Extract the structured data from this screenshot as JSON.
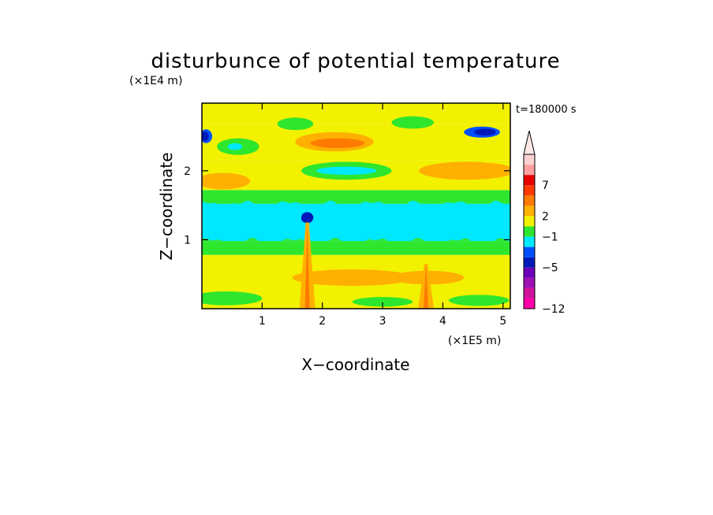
{
  "chart_data": {
    "type": "heatmap",
    "title": "disturbunce of potential temperature",
    "xlabel": "X−coordinate",
    "ylabel": "Z−coordinate",
    "x_unit": "(×1E5 m)",
    "y_unit": "(×1E4 m)",
    "time_label": "t=180000 s",
    "xlim": [
      0,
      5.12
    ],
    "ylim": [
      0,
      2.98
    ],
    "x_ticks": [
      1,
      2,
      3,
      4,
      5
    ],
    "y_ticks": [
      1,
      2
    ],
    "grid": false,
    "colorbar": {
      "placement": "right",
      "levels_from_bottom": [
        "#ff00a8",
        "#d0129a",
        "#9e0fb4",
        "#6a00b8",
        "#0018b8",
        "#0050ff",
        "#00e8ff",
        "#2ee62e",
        "#f2f200",
        "#ffb000",
        "#ff7a00",
        "#ff3a00",
        "#e60000",
        "#ffa0a0",
        "#ffd0d0"
      ],
      "extend_arrow_color": "#ffe8e8",
      "labels": [
        {
          "text": "7",
          "value": 7
        },
        {
          "text": "2",
          "value": 2
        },
        {
          "text": "−1",
          "value": -1
        },
        {
          "text": "−5",
          "value": -5
        },
        {
          "text": "−12",
          "value": -12
        }
      ]
    },
    "field_bands_z": [
      {
        "z_from": 0.0,
        "z_to": 0.78,
        "color": "#f2f200"
      },
      {
        "z_from": 0.78,
        "z_to": 0.98,
        "color": "#2ee62e"
      },
      {
        "z_from": 0.98,
        "z_to": 1.52,
        "color": "#00e8ff"
      },
      {
        "z_from": 1.52,
        "z_to": 1.72,
        "color": "#2ee62e"
      },
      {
        "z_from": 1.72,
        "z_to": 2.15,
        "color": "#f2f200"
      },
      {
        "z_from": 2.15,
        "z_to": 2.68,
        "color": "#f2f200"
      },
      {
        "z_from": 2.68,
        "z_to": 2.98,
        "color": "#f2f200"
      }
    ],
    "features": [
      {
        "kind": "blob",
        "x": 2.2,
        "z": 2.42,
        "rx": 0.65,
        "rz": 0.14,
        "color": "#ffb000"
      },
      {
        "kind": "blob",
        "x": 2.25,
        "z": 2.4,
        "rx": 0.45,
        "rz": 0.07,
        "color": "#ff7a00"
      },
      {
        "kind": "blob",
        "x": 4.65,
        "z": 2.56,
        "rx": 0.3,
        "rz": 0.08,
        "color": "#0050ff"
      },
      {
        "kind": "blob",
        "x": 4.7,
        "z": 2.56,
        "rx": 0.18,
        "rz": 0.05,
        "color": "#0018b8"
      },
      {
        "kind": "blob",
        "x": 0.07,
        "z": 2.5,
        "rx": 0.1,
        "rz": 0.1,
        "color": "#0050ff"
      },
      {
        "kind": "blob",
        "x": 0.05,
        "z": 2.5,
        "rx": 0.06,
        "rz": 0.07,
        "color": "#0018b8"
      },
      {
        "kind": "blob",
        "x": 0.6,
        "z": 2.35,
        "rx": 0.35,
        "rz": 0.12,
        "color": "#2ee62e"
      },
      {
        "kind": "blob",
        "x": 0.55,
        "z": 2.35,
        "rx": 0.12,
        "rz": 0.05,
        "color": "#00e8ff"
      },
      {
        "kind": "blob",
        "x": 2.4,
        "z": 2.0,
        "rx": 0.75,
        "rz": 0.13,
        "color": "#2ee62e"
      },
      {
        "kind": "blob",
        "x": 2.4,
        "z": 2.0,
        "rx": 0.5,
        "rz": 0.06,
        "color": "#00e8ff"
      },
      {
        "kind": "blob",
        "x": 4.4,
        "z": 2.0,
        "rx": 0.8,
        "rz": 0.13,
        "color": "#ffb000"
      },
      {
        "kind": "blob",
        "x": 0.35,
        "z": 1.85,
        "rx": 0.45,
        "rz": 0.12,
        "color": "#ffb000"
      },
      {
        "kind": "blob",
        "x": 1.55,
        "z": 2.68,
        "rx": 0.3,
        "rz": 0.09,
        "color": "#2ee62e"
      },
      {
        "kind": "blob",
        "x": 3.5,
        "z": 2.7,
        "rx": 0.35,
        "rz": 0.09,
        "color": "#2ee62e"
      },
      {
        "kind": "blob",
        "x": 1.72,
        "z": 1.3,
        "rx": 0.07,
        "rz": 0.05,
        "color": "#0050ff"
      },
      {
        "kind": "blob",
        "x": 1.75,
        "z": 1.32,
        "rx": 0.1,
        "rz": 0.08,
        "color": "#0018b8"
      },
      {
        "kind": "blob",
        "x": 2.5,
        "z": 0.45,
        "rx": 1.0,
        "rz": 0.12,
        "color": "#ffb000"
      },
      {
        "kind": "blob",
        "x": 3.75,
        "z": 0.45,
        "rx": 0.6,
        "rz": 0.1,
        "color": "#ffb000"
      },
      {
        "kind": "blob",
        "x": 0.4,
        "z": 0.15,
        "rx": 0.6,
        "rz": 0.1,
        "color": "#2ee62e"
      },
      {
        "kind": "blob",
        "x": 3.0,
        "z": 0.1,
        "rx": 0.5,
        "rz": 0.07,
        "color": "#2ee62e"
      },
      {
        "kind": "blob",
        "x": 4.6,
        "z": 0.12,
        "rx": 0.5,
        "rz": 0.08,
        "color": "#2ee62e"
      },
      {
        "kind": "plume",
        "x": 1.75,
        "z_top": 1.25,
        "color": "#ff7a00"
      },
      {
        "kind": "plume",
        "x": 3.72,
        "z_top": 0.65,
        "color": "#ff7a00"
      }
    ]
  }
}
